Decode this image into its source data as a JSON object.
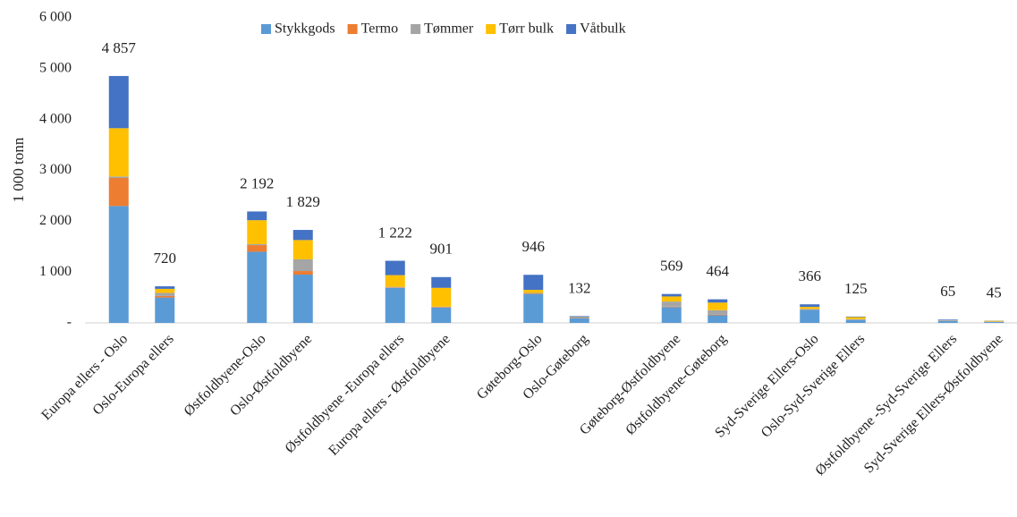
{
  "chart_data": {
    "type": "stacked_bar",
    "ylabel": "1 000 tonn",
    "categories": [
      "Europa ellers - Oslo",
      "Oslo-Europa ellers",
      null,
      "Østfoldbyene-Oslo",
      "Oslo-Østfoldbyene",
      null,
      "Østfoldbyene -Europa ellers",
      "Europa ellers - Østfoldbyene",
      null,
      "Gøteborg-Oslo",
      "Oslo-Gøteborg",
      null,
      "Gøteborg-Østfoldbyene",
      "Østfoldbyene-Gøteborg",
      null,
      "Syd-Sverige Ellers-Oslo",
      "Oslo-Syd-Sverige Ellers",
      null,
      "Østfoldbyene -Syd-Sverige Ellers",
      "Syd-Sverige Ellers-Østfoldbyene"
    ],
    "series": [
      {
        "name": "Stykkgods",
        "color": "#5b9bd5",
        "values": [
          2300,
          500,
          null,
          1400,
          950,
          null,
          690,
          300,
          null,
          570,
          90,
          null,
          310,
          150,
          null,
          260,
          60,
          null,
          40,
          20
        ]
      },
      {
        "name": "Termo",
        "color": "#ed7d31",
        "values": [
          550,
          30,
          null,
          130,
          70,
          null,
          10,
          10,
          null,
          10,
          5,
          null,
          10,
          10,
          null,
          5,
          5,
          null,
          2,
          2
        ]
      },
      {
        "name": "Tømmer",
        "color": "#a5a5a5",
        "values": [
          30,
          60,
          null,
          20,
          230,
          null,
          10,
          10,
          null,
          10,
          10,
          null,
          100,
          90,
          null,
          10,
          10,
          null,
          3,
          5
        ]
      },
      {
        "name": "Tørr bulk",
        "color": "#ffc000",
        "values": [
          950,
          80,
          null,
          470,
          380,
          null,
          230,
          370,
          null,
          60,
          7,
          null,
          100,
          150,
          null,
          40,
          40,
          null,
          5,
          15
        ]
      },
      {
        "name": "Våtbulk",
        "color": "#4472c4",
        "values": [
          1027,
          50,
          null,
          172,
          199,
          null,
          282,
          211,
          null,
          296,
          20,
          null,
          49,
          64,
          null,
          51,
          10,
          null,
          15,
          3
        ]
      }
    ],
    "totals": [
      4857,
      720,
      null,
      2192,
      1829,
      null,
      1222,
      901,
      null,
      946,
      132,
      null,
      569,
      464,
      null,
      366,
      125,
      null,
      65,
      45
    ],
    "total_labels": [
      "4 857",
      "720",
      null,
      "2 192",
      "1 829",
      null,
      "1 222",
      "901",
      null,
      "946",
      "132",
      null,
      "569",
      "464",
      null,
      "366",
      "125",
      null,
      "65",
      "45"
    ],
    "ylim": [
      0,
      6000
    ],
    "yticks": [
      {
        "value": 0,
        "label": "-"
      },
      {
        "value": 1000,
        "label": "1 000"
      },
      {
        "value": 2000,
        "label": "2 000"
      },
      {
        "value": 3000,
        "label": "3 000"
      },
      {
        "value": 4000,
        "label": "4 000"
      },
      {
        "value": 5000,
        "label": "5 000"
      },
      {
        "value": 6000,
        "label": "6 000"
      }
    ],
    "grid": false,
    "legend": "top"
  }
}
